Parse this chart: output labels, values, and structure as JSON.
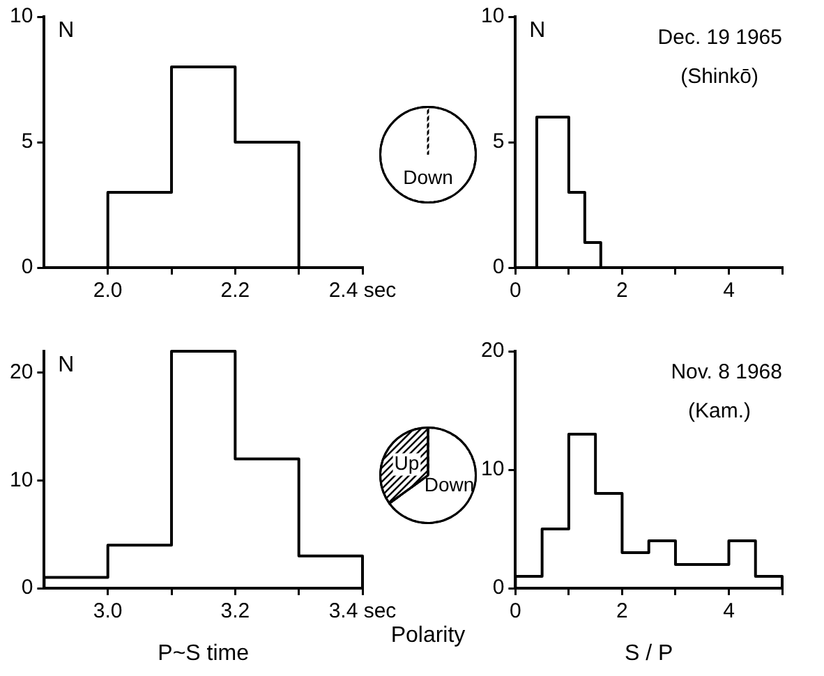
{
  "chart_data": [
    {
      "type": "histogram",
      "ylabel": "N",
      "bins": [
        1.9,
        2.0,
        2.1,
        2.2,
        2.3,
        2.4
      ],
      "values": [
        0,
        3,
        8,
        5,
        0
      ],
      "color": "#000000",
      "xlim": [
        1.9,
        2.4
      ],
      "xticks": [
        {
          "value": 2,
          "label": "2.0"
        },
        {
          "value": 2.1,
          "label": null
        },
        2.2,
        {
          "value": 2.3,
          "label": null
        },
        {
          "value": 2.4,
          "label": "2.4 sec"
        }
      ],
      "ylim": [
        0,
        10
      ],
      "yticks": [
        0,
        5,
        10
      ]
    },
    {
      "type": "pie",
      "categories": [
        "Down"
      ],
      "values": [
        100
      ],
      "colors": [
        "#ffffff"
      ]
    },
    {
      "type": "histogram",
      "title": "Dec. 19 1965",
      "subtitle": "(Shinkō)",
      "ylabel": "N",
      "bins": [
        0.4,
        0.7,
        1.0,
        1.3,
        1.6
      ],
      "values": [
        6,
        6,
        3,
        1
      ],
      "color": "#000000",
      "xlim": [
        0,
        5
      ],
      "xticks": [
        0,
        {
          "value": 1,
          "label": null
        },
        2,
        {
          "value": 3,
          "label": null
        },
        4,
        {
          "value": 5,
          "label": null
        }
      ],
      "ylim": [
        0,
        10
      ],
      "yticks": [
        0,
        5,
        10
      ]
    },
    {
      "type": "histogram",
      "ylabel": "N",
      "xlabel": "P~S time",
      "bins": [
        2.9,
        3.0,
        3.1,
        3.2,
        3.3,
        3.4
      ],
      "values": [
        1,
        4,
        22,
        12,
        3
      ],
      "color": "#000000",
      "xlim": [
        2.9,
        3.4
      ],
      "xticks": [
        {
          "value": 3,
          "label": "3.0"
        },
        {
          "value": 3.1,
          "label": null
        },
        3.2,
        {
          "value": 3.3,
          "label": null
        },
        {
          "value": 3.4,
          "label": "3.4 sec"
        }
      ],
      "ylim": [
        0,
        22
      ],
      "yticks": [
        0,
        10,
        20
      ]
    },
    {
      "type": "pie",
      "xlabel": "Polarity",
      "categories": [
        "Down",
        "Up"
      ],
      "values": [
        65,
        35
      ],
      "colors": [
        "#ffffff",
        "#000000"
      ]
    },
    {
      "type": "histogram",
      "title": "Nov. 8 1968",
      "subtitle": "(Kam.)",
      "xlabel": "S / P",
      "bins": [
        0,
        0.5,
        1.0,
        1.5,
        2.0,
        2.5,
        3.0,
        3.5,
        4.0,
        4.5,
        5.0
      ],
      "values": [
        1,
        5,
        13,
        8,
        3,
        4,
        2,
        2,
        4,
        1
      ],
      "color": "#000000",
      "xlim": [
        0,
        5
      ],
      "xticks": [
        0,
        {
          "value": 1,
          "label": null
        },
        2,
        {
          "value": 3,
          "label": null
        },
        4,
        {
          "value": 5,
          "label": null
        }
      ],
      "ylim": [
        0,
        20
      ],
      "yticks": [
        0,
        10,
        20
      ]
    }
  ]
}
